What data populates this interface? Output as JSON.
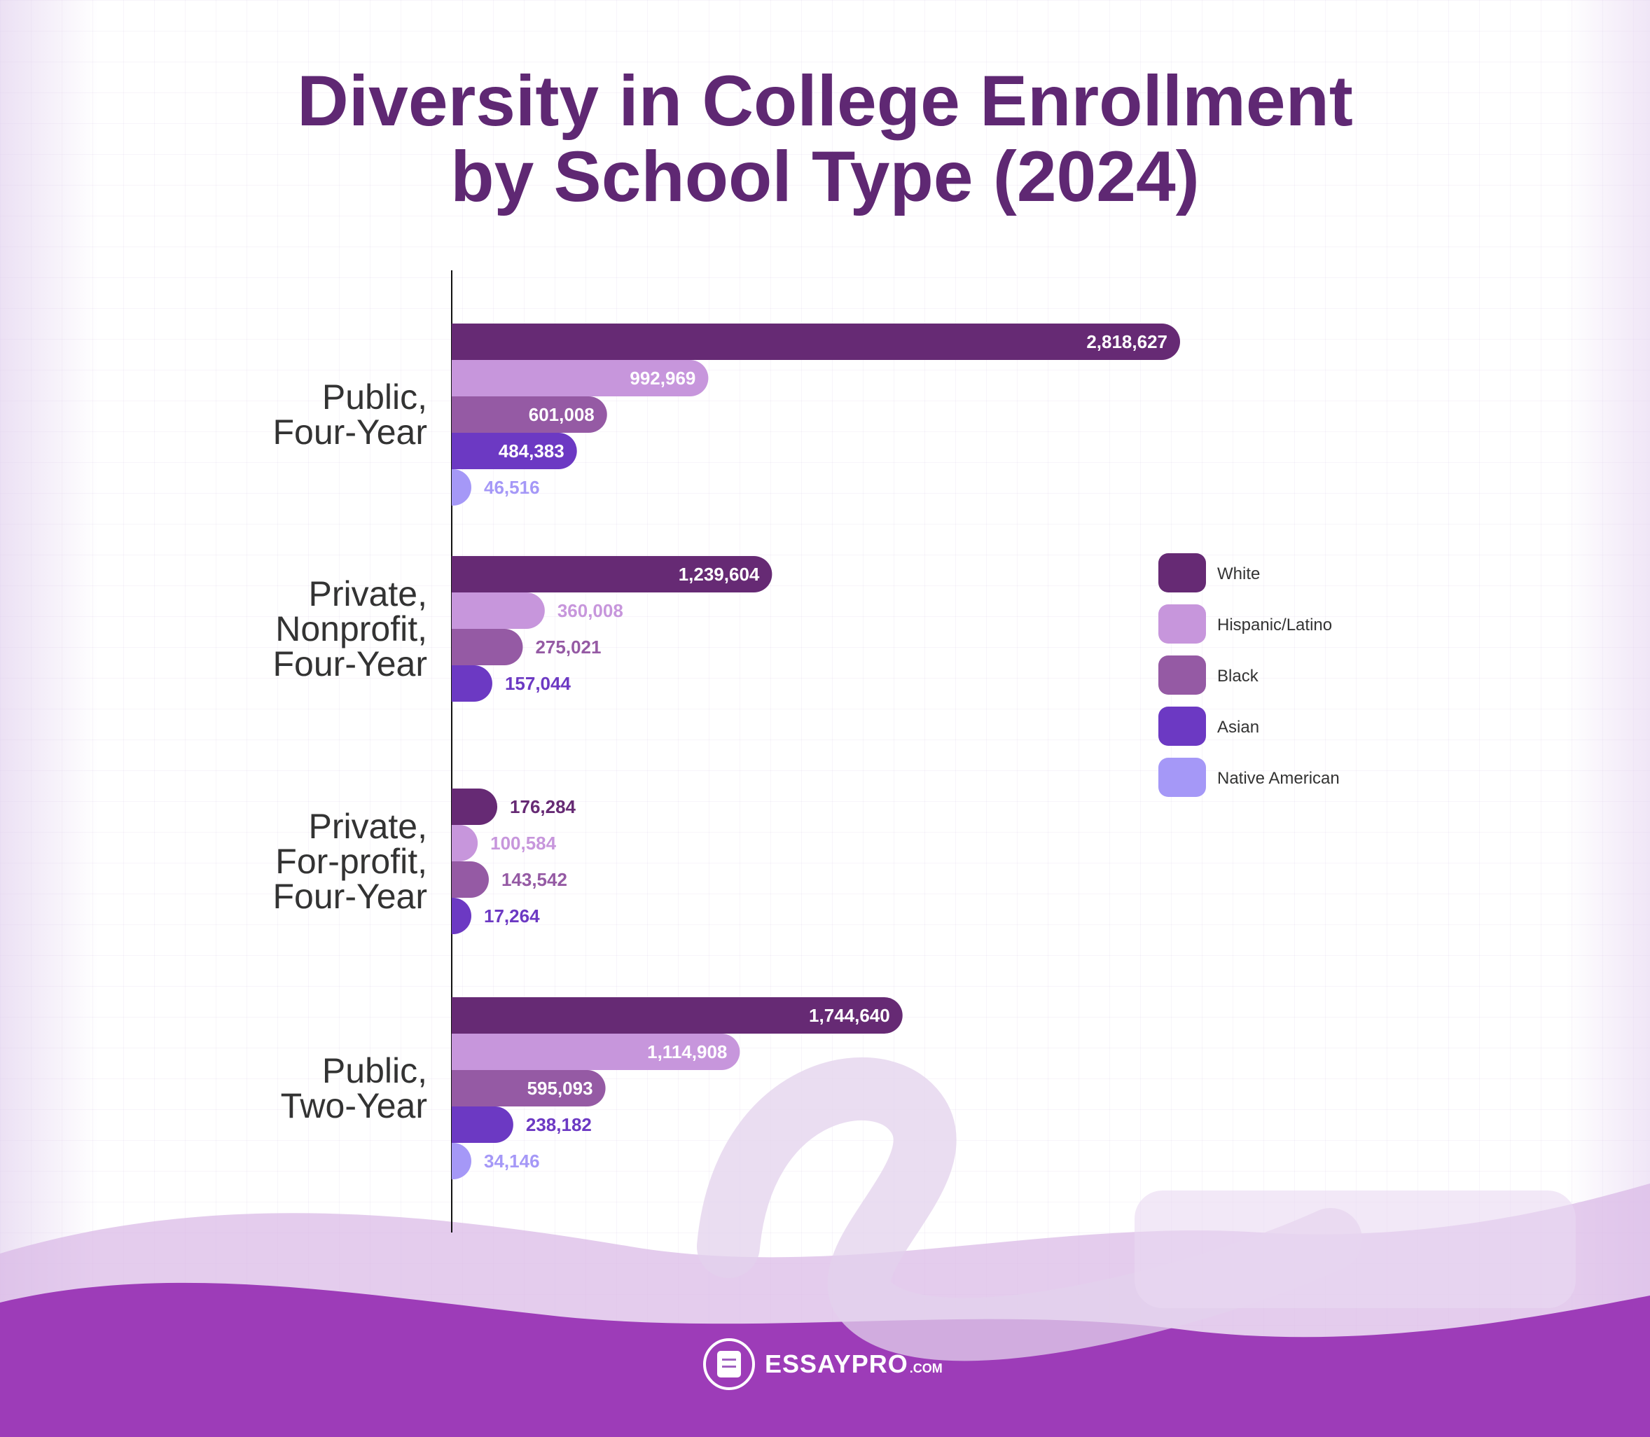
{
  "title": {
    "line1": "Diversity in College Enrollment",
    "line2": "by School Type (2024)"
  },
  "brand": {
    "logo_icon": "document-pencil-icon",
    "name": "ESSAYPRO",
    "suffix": ".COM"
  },
  "chart_data": {
    "type": "bar",
    "orientation": "horizontal",
    "title": "Diversity in College Enrollment by School Type (2024)",
    "categories": [
      [
        "Public,",
        "Four-Year"
      ],
      [
        "Private,",
        "Nonprofit,",
        "Four-Year"
      ],
      [
        "Private,",
        "For-profit,",
        "Four-Year"
      ],
      [
        "Public,",
        "Two-Year"
      ]
    ],
    "series": [
      {
        "name": "White",
        "color": "#662a74",
        "values": [
          2818627,
          1239604,
          176284,
          1744640
        ]
      },
      {
        "name": "Hispanic/Latino",
        "color": "#c796dc",
        "values": [
          992969,
          360008,
          100584,
          1114908
        ]
      },
      {
        "name": "Black",
        "color": "#955aa4",
        "values": [
          601008,
          275021,
          143542,
          595093
        ]
      },
      {
        "name": "Asian",
        "color": "#6c39c3",
        "values": [
          484383,
          157044,
          17264,
          238182
        ]
      },
      {
        "name": "Native American",
        "color": "#a598f7",
        "values": [
          46516,
          null,
          null,
          34146
        ]
      }
    ],
    "value_labels": [
      [
        "2,818,627",
        "1,239,604",
        "176,284",
        "1,744,640"
      ],
      [
        "992,969",
        "360,008",
        "100,584",
        "1,114,908"
      ],
      [
        "601,008",
        "275,021",
        "143,542",
        "595,093"
      ],
      [
        "484,383",
        "157,044",
        "17,264",
        "238,182"
      ],
      [
        "46,516",
        null,
        null,
        "34,146"
      ]
    ],
    "xlim": [
      0,
      2818627
    ],
    "xlabel": "",
    "ylabel": "",
    "grid": false,
    "legend_position": "right"
  }
}
